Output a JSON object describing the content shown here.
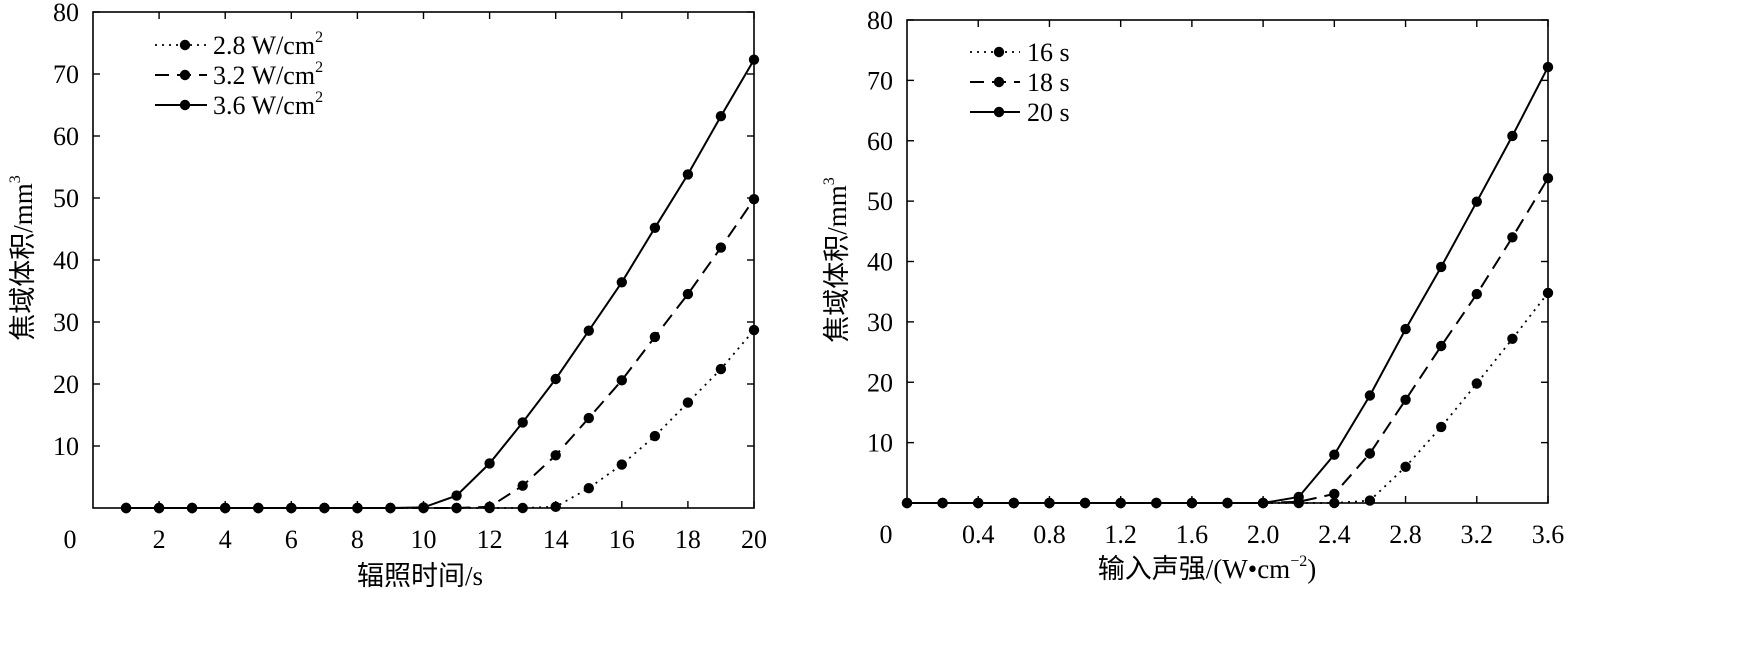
{
  "chart_data": [
    {
      "type": "line",
      "xlabel": "辐照时间/s",
      "ylabel": "焦域体积/mm",
      "ylabel_sup": "3",
      "xlim": [
        0,
        20
      ],
      "ylim": [
        0,
        80
      ],
      "xticks": [
        0,
        2,
        4,
        6,
        8,
        10,
        12,
        14,
        16,
        18,
        20
      ],
      "xtick_labels": [
        "0",
        "2",
        "4",
        "6",
        "8",
        "10",
        "12",
        "14",
        "16",
        "18",
        "20"
      ],
      "yticks": [
        10,
        20,
        30,
        40,
        50,
        60,
        70,
        80
      ],
      "ytick_labels": [
        "10",
        "20",
        "30",
        "40",
        "50",
        "60",
        "70",
        "80"
      ],
      "legend_position": "top-left",
      "series": [
        {
          "name": "2.8 W/cm",
          "name_sup": "2",
          "style": "dotted",
          "x": [
            1,
            2,
            3,
            4,
            5,
            6,
            7,
            8,
            9,
            10,
            11,
            12,
            13,
            14,
            15,
            16,
            17,
            18,
            19,
            20
          ],
          "y": [
            0,
            0,
            0,
            0,
            0,
            0,
            0,
            0,
            0,
            0,
            0,
            0,
            0,
            0.2,
            3.2,
            7,
            11.6,
            17,
            22.4,
            28.7
          ]
        },
        {
          "name": "3.2 W/cm",
          "name_sup": "2",
          "style": "dashed",
          "x": [
            1,
            2,
            3,
            4,
            5,
            6,
            7,
            8,
            9,
            10,
            11,
            12,
            13,
            14,
            15,
            16,
            17,
            18,
            19,
            20
          ],
          "y": [
            0,
            0,
            0,
            0,
            0,
            0,
            0,
            0,
            0,
            0,
            0,
            0.2,
            3.6,
            8.5,
            14.5,
            20.6,
            27.6,
            34.5,
            42,
            49.8
          ]
        },
        {
          "name": "3.6 W/cm",
          "name_sup": "2",
          "style": "solid",
          "x": [
            1,
            2,
            3,
            4,
            5,
            6,
            7,
            8,
            9,
            10,
            11,
            12,
            13,
            14,
            15,
            16,
            17,
            18,
            19,
            20
          ],
          "y": [
            0,
            0,
            0,
            0,
            0,
            0,
            0,
            0,
            0,
            0.1,
            2,
            7.2,
            13.8,
            20.8,
            28.6,
            36.4,
            45.2,
            53.8,
            63.2,
            72.3
          ]
        }
      ]
    },
    {
      "type": "line",
      "xlabel": "输入声强/(W•cm",
      "xlabel_sup": "−2",
      "xlabel_tail": ")",
      "ylabel": "焦域体积/mm",
      "ylabel_sup": "3",
      "xlim": [
        0,
        3.6
      ],
      "ylim": [
        0,
        80
      ],
      "xticks": [
        0,
        0.4,
        0.8,
        1.2,
        1.6,
        2.0,
        2.4,
        2.8,
        3.2,
        3.6
      ],
      "xtick_labels": [
        "0",
        "0.4",
        "0.8",
        "1.2",
        "1.6",
        "2.0",
        "2.4",
        "2.8",
        "3.2",
        "3.6"
      ],
      "yticks": [
        10,
        20,
        30,
        40,
        50,
        60,
        70,
        80
      ],
      "ytick_labels": [
        "10",
        "20",
        "30",
        "40",
        "50",
        "60",
        "70",
        "80"
      ],
      "legend_position": "top-left",
      "series": [
        {
          "name": "16 s",
          "style": "dotted",
          "x": [
            0,
            0.2,
            0.4,
            0.6,
            0.8,
            1.0,
            1.2,
            1.4,
            1.6,
            1.8,
            2.0,
            2.2,
            2.4,
            2.6,
            2.8,
            3.0,
            3.2,
            3.4,
            3.6
          ],
          "y": [
            0,
            0,
            0,
            0,
            0,
            0,
            0,
            0,
            0,
            0,
            0,
            0,
            0,
            0.4,
            6,
            12.6,
            19.8,
            27.2,
            34.8
          ]
        },
        {
          "name": "18 s",
          "style": "dashed",
          "x": [
            0,
            0.2,
            0.4,
            0.6,
            0.8,
            1.0,
            1.2,
            1.4,
            1.6,
            1.8,
            2.0,
            2.2,
            2.4,
            2.6,
            2.8,
            3.0,
            3.2,
            3.4,
            3.6
          ],
          "y": [
            0,
            0,
            0,
            0,
            0,
            0,
            0,
            0,
            0,
            0,
            0,
            0.2,
            1.5,
            8.2,
            17.1,
            26,
            34.6,
            44,
            53.8
          ]
        },
        {
          "name": "20 s",
          "style": "solid",
          "x": [
            0,
            0.2,
            0.4,
            0.6,
            0.8,
            1.0,
            1.2,
            1.4,
            1.6,
            1.8,
            2.0,
            2.2,
            2.4,
            2.6,
            2.8,
            3.0,
            3.2,
            3.4,
            3.6
          ],
          "y": [
            0,
            0,
            0,
            0,
            0,
            0,
            0,
            0,
            0,
            0,
            0,
            1,
            8,
            17.8,
            28.8,
            39.1,
            49.9,
            60.8,
            72.2
          ]
        }
      ]
    }
  ]
}
